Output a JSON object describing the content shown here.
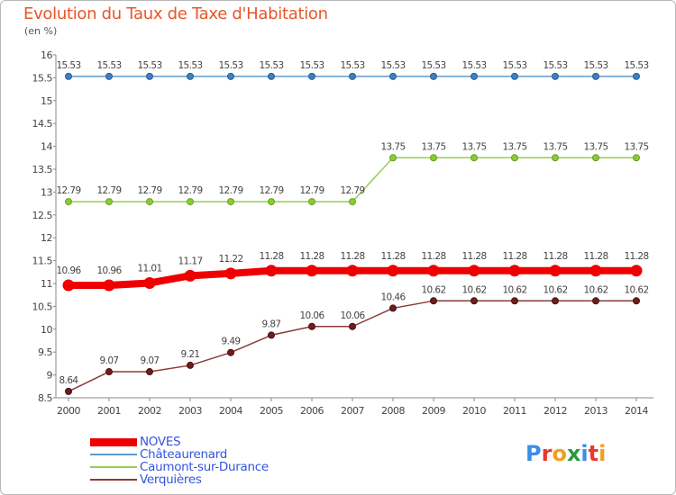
{
  "title": "Evolution du Taux de Taxe d'Habitation",
  "unit": "(en %)",
  "logo": {
    "text": "Proxiti",
    "letters": [
      "P",
      "r",
      "o",
      "x",
      "i",
      "t",
      "i"
    ],
    "colors": [
      "#3a8ee6",
      "#e63a2a",
      "#f0a020",
      "#2a9a3a",
      "#3a8ee6",
      "#e63a2a",
      "#f0a020"
    ]
  },
  "chart_data": {
    "type": "line",
    "title": "Evolution du Taux de Taxe d'Habitation",
    "ylabel": "(en %)",
    "xlabel": "",
    "ylim": [
      8.5,
      16
    ],
    "yticks": [
      8.5,
      9,
      9.5,
      10,
      10.5,
      11,
      11.5,
      12,
      12.5,
      13,
      13.5,
      14,
      14.5,
      15,
      15.5,
      16
    ],
    "ytick_labels": [
      "8.5",
      "9",
      "9.5",
      "10",
      "10.5",
      "11",
      "11.5",
      "12",
      "12.5",
      "13",
      "13.5",
      "14",
      "14.5",
      "15",
      "15.5",
      "16"
    ],
    "grid": false,
    "legend_position": "bottom-left",
    "x": [
      "2000",
      "2001",
      "2002",
      "2003",
      "2004",
      "2005",
      "2006",
      "2007",
      "2008",
      "2009",
      "2010",
      "2011",
      "2012",
      "2013",
      "2014"
    ],
    "series": [
      {
        "name": "NOVES",
        "color": "#ee0000",
        "values": [
          10.96,
          10.96,
          11.01,
          11.17,
          11.22,
          11.28,
          11.28,
          11.28,
          11.28,
          11.28,
          11.28,
          11.28,
          11.28,
          11.28,
          11.28
        ],
        "labels": [
          "10.96",
          "10.96",
          "11.01",
          "11.17",
          "11.22",
          "11.28",
          "11.28",
          "11.28",
          "11.28",
          "11.28",
          "11.28",
          "11.28",
          "11.28",
          "11.28",
          "11.28"
        ]
      },
      {
        "name": "Châteaurenard",
        "color": "#5b9bd0",
        "values": [
          15.53,
          15.53,
          15.53,
          15.53,
          15.53,
          15.53,
          15.53,
          15.53,
          15.53,
          15.53,
          15.53,
          15.53,
          15.53,
          15.53,
          15.53
        ],
        "labels": [
          "15.53",
          "15.53",
          "15.53",
          "15.53",
          "15.53",
          "15.53",
          "15.53",
          "15.53",
          "15.53",
          "15.53",
          "15.53",
          "15.53",
          "15.53",
          "15.53",
          "15.53"
        ]
      },
      {
        "name": "Caumont-sur-Durance",
        "color": "#99cc55",
        "values": [
          12.79,
          12.79,
          12.79,
          12.79,
          12.79,
          12.79,
          12.79,
          12.79,
          13.75,
          13.75,
          13.75,
          13.75,
          13.75,
          13.75,
          13.75
        ],
        "labels": [
          "12.79",
          "12.79",
          "12.79",
          "12.79",
          "12.79",
          "12.79",
          "12.79",
          "12.79",
          "13.75",
          "13.75",
          "13.75",
          "13.75",
          "13.75",
          "13.75",
          "13.75"
        ]
      },
      {
        "name": "Verquières",
        "color": "#8b3a3a",
        "values": [
          8.64,
          9.07,
          9.07,
          9.21,
          9.49,
          9.87,
          10.06,
          10.06,
          10.46,
          10.62,
          10.62,
          10.62,
          10.62,
          10.62,
          10.62
        ],
        "labels": [
          "8.64",
          "9.07",
          "9.07",
          "9.21",
          "9.49",
          "9.87",
          "10.06",
          "10.06",
          "10.46",
          "10.62",
          "10.62",
          "10.62",
          "10.62",
          "10.62",
          "10.62"
        ]
      }
    ]
  }
}
